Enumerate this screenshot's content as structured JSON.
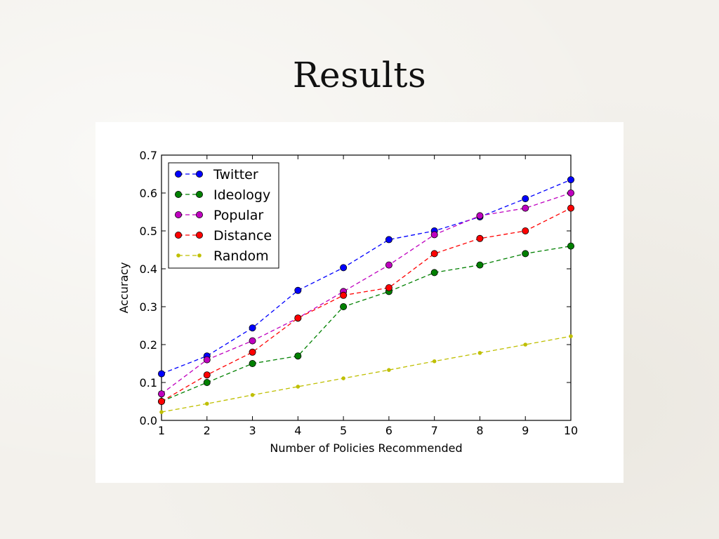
{
  "slide": {
    "title": "Results"
  },
  "chart_data": {
    "type": "line",
    "title": "",
    "xlabel": "Number of Policies Recommended",
    "ylabel": "Accuracy",
    "xlim": [
      1,
      10
    ],
    "ylim": [
      0.0,
      0.7
    ],
    "x": [
      1,
      2,
      3,
      4,
      5,
      6,
      7,
      8,
      9,
      10
    ],
    "xticks": [
      "1",
      "2",
      "3",
      "4",
      "5",
      "6",
      "7",
      "8",
      "9",
      "10"
    ],
    "yticks": [
      "0.0",
      "0.1",
      "0.2",
      "0.3",
      "0.4",
      "0.5",
      "0.6",
      "0.7"
    ],
    "grid": false,
    "legend_position": "upper-left",
    "series": [
      {
        "name": "Twitter",
        "color": "#0000ff",
        "marker": "circle",
        "linestyle": "dashed",
        "values": [
          0.123,
          0.17,
          0.244,
          0.343,
          0.403,
          0.477,
          0.5,
          0.537,
          0.585,
          0.635
        ]
      },
      {
        "name": "Ideology",
        "color": "#008000",
        "marker": "circle",
        "linestyle": "dashed",
        "values": [
          0.05,
          0.1,
          0.15,
          0.17,
          0.3,
          0.34,
          0.39,
          0.41,
          0.44,
          0.46
        ]
      },
      {
        "name": "Popular",
        "color": "#bf00bf",
        "marker": "circle",
        "linestyle": "dashed",
        "values": [
          0.07,
          0.16,
          0.21,
          0.27,
          0.34,
          0.41,
          0.49,
          0.54,
          0.56,
          0.6
        ]
      },
      {
        "name": "Distance",
        "color": "#ff0000",
        "marker": "circle",
        "linestyle": "dashed",
        "values": [
          0.05,
          0.12,
          0.18,
          0.27,
          0.33,
          0.35,
          0.44,
          0.48,
          0.5,
          0.56
        ]
      },
      {
        "name": "Random",
        "color": "#bfbf00",
        "marker": "dot",
        "linestyle": "dashed",
        "values": [
          0.022,
          0.044,
          0.067,
          0.089,
          0.111,
          0.133,
          0.156,
          0.178,
          0.2,
          0.222
        ]
      }
    ]
  }
}
